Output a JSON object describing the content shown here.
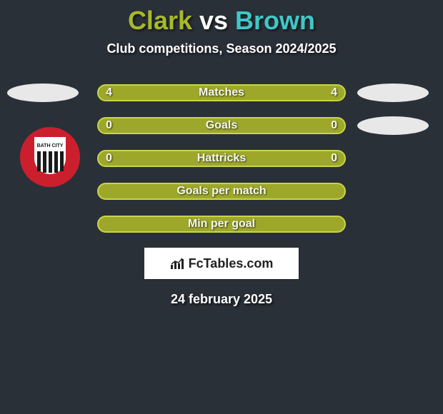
{
  "title": {
    "player1": "Clark",
    "vs": " vs ",
    "player2": "Brown",
    "player1_color": "#a7b92b",
    "vs_color": "#ffffff",
    "player2_color": "#40c7c7",
    "fontsize": 36
  },
  "subtitle": "Club competitions, Season 2024/2025",
  "background_color": "#2a3038",
  "side_ellipse_color": "#e8e8e8",
  "rows": [
    {
      "label": "Matches",
      "left": "4",
      "right": "4",
      "fill": "#9da82b",
      "border": "#c8d648",
      "show_left_ellipse": true,
      "show_right_ellipse": true
    },
    {
      "label": "Goals",
      "left": "0",
      "right": "0",
      "fill": "#9da82b",
      "border": "#c8d648",
      "show_left_ellipse": false,
      "show_right_ellipse": true
    },
    {
      "label": "Hattricks",
      "left": "0",
      "right": "0",
      "fill": "#9da82b",
      "border": "#c8d648",
      "show_left_ellipse": false,
      "show_right_ellipse": false
    },
    {
      "label": "Goals per match",
      "left": "",
      "right": "",
      "fill": "#9da82b",
      "border": "#c8d648",
      "show_left_ellipse": false,
      "show_right_ellipse": false
    },
    {
      "label": "Min per goal",
      "left": "",
      "right": "",
      "fill": "#9da82b",
      "border": "#c8d648",
      "show_left_ellipse": false,
      "show_right_ellipse": false
    }
  ],
  "club_badge": {
    "outer_color": "#cc1f2d",
    "inner_bg": "#ffffff",
    "stripe_color": "#1a1a1a"
  },
  "brand": {
    "text": "FcTables.com",
    "bg": "#ffffff",
    "text_color": "#222222"
  },
  "date": "24 february 2025"
}
